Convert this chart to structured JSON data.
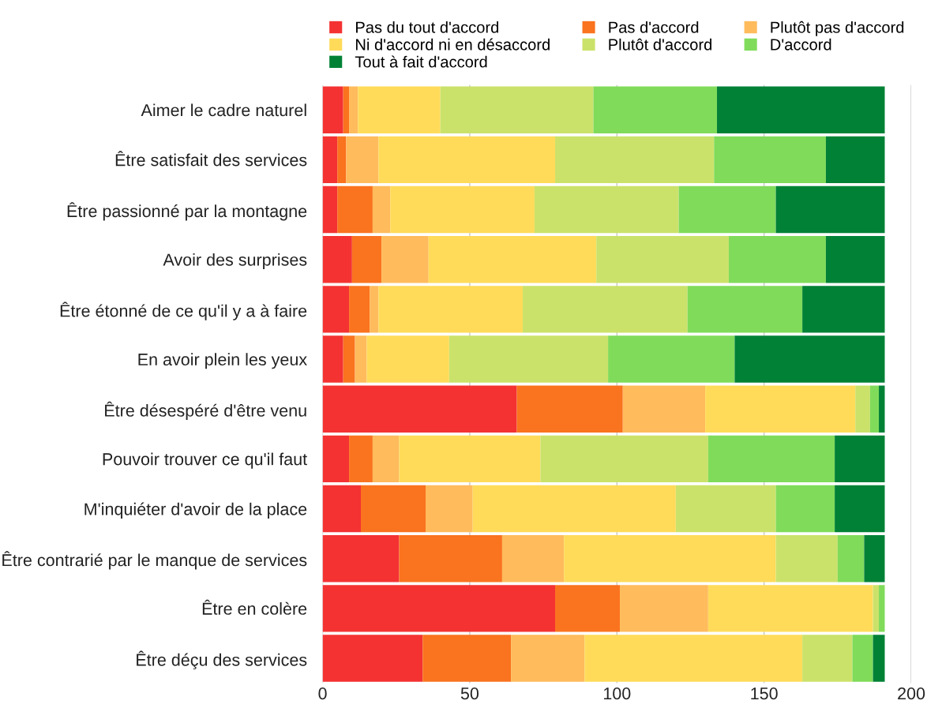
{
  "chart_data": {
    "type": "bar",
    "orientation": "horizontal",
    "stacked": true,
    "categories": [
      "Aimer le cadre naturel",
      "Être satisfait des services",
      "Être passionné par la montagne",
      "Avoir des surprises",
      "Être étonné de ce qu'il y a à faire",
      "En avoir plein les yeux",
      "Être désespéré d'être venu",
      "Pouvoir trouver ce qu'il faut",
      "M'inquiéter d'avoir de la place",
      "Être contrarié par le manque de services",
      "Être en colère",
      "Être déçu des services"
    ],
    "series": [
      {
        "name": "Pas du tout d'accord",
        "color": "#f43232",
        "values": [
          7,
          5,
          5,
          10,
          9,
          7,
          66,
          9,
          13,
          26,
          79,
          34
        ]
      },
      {
        "name": "Pas d'accord",
        "color": "#fa731e",
        "values": [
          2,
          3,
          12,
          10,
          7,
          4,
          36,
          8,
          22,
          35,
          22,
          30
        ]
      },
      {
        "name": "Plutôt pas d'accord",
        "color": "#ffbb5c",
        "values": [
          3,
          11,
          6,
          16,
          3,
          4,
          28,
          9,
          16,
          21,
          30,
          25
        ]
      },
      {
        "name": "Ni d'accord ni en désaccord",
        "color": "#ffdb59",
        "values": [
          28,
          60,
          49,
          57,
          49,
          28,
          51,
          48,
          69,
          72,
          56,
          74
        ]
      },
      {
        "name": "Plutôt d'accord",
        "color": "#cbe26a",
        "values": [
          52,
          54,
          49,
          45,
          56,
          54,
          5,
          57,
          34,
          21,
          2,
          17
        ]
      },
      {
        "name": "D'accord",
        "color": "#80db5a",
        "values": [
          42,
          38,
          33,
          33,
          39,
          43,
          3,
          43,
          20,
          9,
          2,
          7
        ]
      },
      {
        "name": "Tout à fait d'accord",
        "color": "#008136",
        "values": [
          57,
          20,
          37,
          20,
          28,
          51,
          2,
          17,
          17,
          7,
          0,
          4
        ]
      }
    ],
    "xlim": [
      0,
      200
    ],
    "xticks": [
      0,
      50,
      100,
      150,
      200
    ],
    "grid": "x",
    "legend": "top"
  }
}
